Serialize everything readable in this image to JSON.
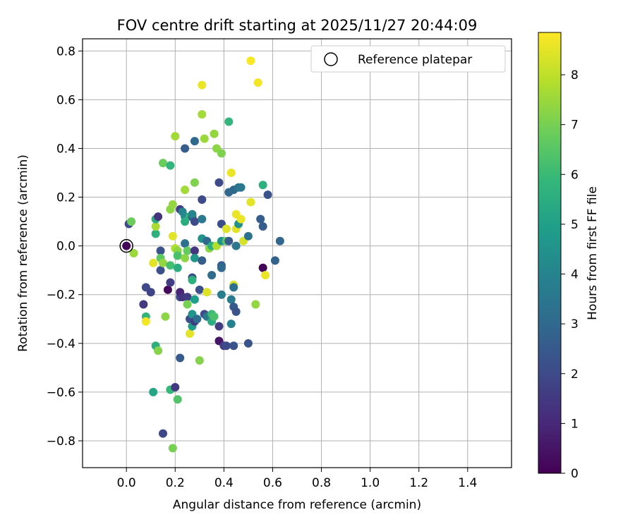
{
  "chart_data": {
    "type": "scatter",
    "title": "FOV centre drift starting at 2025/11/27 20:44:09",
    "xlabel": "Angular distance from reference (arcmin)",
    "ylabel": "Rotation from reference (arcmin)",
    "xlim": [
      -0.18,
      1.58
    ],
    "ylim": [
      -0.91,
      0.85
    ],
    "grid": true,
    "xticks": [
      0.0,
      0.2,
      0.4,
      0.6,
      0.8,
      1.0,
      1.2,
      1.4
    ],
    "xtick_labels": [
      "0.0",
      "0.2",
      "0.4",
      "0.6",
      "0.8",
      "1.0",
      "1.2",
      "1.4"
    ],
    "yticks": [
      0.8,
      0.6,
      0.4,
      0.2,
      0.0,
      -0.2,
      -0.4,
      -0.6,
      -0.8
    ],
    "ytick_labels": [
      "0.8",
      "0.6",
      "0.4",
      "0.2",
      "0.0",
      "−0.2",
      "−0.4",
      "−0.6",
      "−0.8"
    ],
    "legend": {
      "placement": "top-right",
      "label": "Reference platepar"
    },
    "reference_point": {
      "x": 0.0,
      "y": 0.0
    },
    "colorbar": {
      "label": "Hours from first FF file",
      "range": [
        0,
        8.85
      ],
      "ticks": [
        0,
        1,
        2,
        3,
        4,
        5,
        6,
        7,
        8
      ],
      "tick_labels": [
        "0",
        "1",
        "2",
        "3",
        "4",
        "5",
        "6",
        "7",
        "8"
      ],
      "colormap": "viridis",
      "colormap_stops": [
        "#440154",
        "#482878",
        "#3e4989",
        "#31688e",
        "#26828e",
        "#1f9e89",
        "#35b779",
        "#6ece58",
        "#b5de2b",
        "#fde725"
      ]
    },
    "points": [
      {
        "x": 0.0,
        "y": 0.0,
        "t": 0.1
      },
      {
        "x": 0.01,
        "y": 0.09,
        "t": 2.0
      },
      {
        "x": 0.02,
        "y": 0.1,
        "t": 6.8
      },
      {
        "x": 0.03,
        "y": -0.03,
        "t": 7.5
      },
      {
        "x": 0.07,
        "y": -0.24,
        "t": 1.5
      },
      {
        "x": 0.08,
        "y": -0.29,
        "t": 5.8
      },
      {
        "x": 0.08,
        "y": -0.31,
        "t": 8.7
      },
      {
        "x": 0.08,
        "y": -0.17,
        "t": 2.0
      },
      {
        "x": 0.1,
        "y": -0.19,
        "t": 1.8
      },
      {
        "x": 0.11,
        "y": -0.07,
        "t": 8.5
      },
      {
        "x": 0.11,
        "y": -0.6,
        "t": 5.2
      },
      {
        "x": 0.12,
        "y": 0.05,
        "t": 5.6
      },
      {
        "x": 0.12,
        "y": 0.08,
        "t": 7.7
      },
      {
        "x": 0.12,
        "y": 0.11,
        "t": 5.4
      },
      {
        "x": 0.13,
        "y": 0.12,
        "t": 1.3
      },
      {
        "x": 0.12,
        "y": -0.41,
        "t": 5.6
      },
      {
        "x": 0.13,
        "y": -0.43,
        "t": 7.2
      },
      {
        "x": 0.14,
        "y": -0.02,
        "t": 2.3
      },
      {
        "x": 0.14,
        "y": -0.05,
        "t": 6.6
      },
      {
        "x": 0.14,
        "y": -0.1,
        "t": 2.2
      },
      {
        "x": 0.15,
        "y": -0.07,
        "t": 7.4
      },
      {
        "x": 0.15,
        "y": -0.77,
        "t": 1.9
      },
      {
        "x": 0.15,
        "y": 0.34,
        "t": 6.8
      },
      {
        "x": 0.16,
        "y": -0.29,
        "t": 7.3
      },
      {
        "x": 0.17,
        "y": -0.18,
        "t": 0.2
      },
      {
        "x": 0.18,
        "y": 0.33,
        "t": 5.8
      },
      {
        "x": 0.18,
        "y": 0.15,
        "t": 7.3
      },
      {
        "x": 0.19,
        "y": 0.17,
        "t": 7.4
      },
      {
        "x": 0.18,
        "y": -0.15,
        "t": 1.6
      },
      {
        "x": 0.18,
        "y": -0.08,
        "t": 6.2
      },
      {
        "x": 0.18,
        "y": -0.59,
        "t": 5.9
      },
      {
        "x": 0.19,
        "y": -0.83,
        "t": 7.0
      },
      {
        "x": 0.19,
        "y": 0.04,
        "t": 8.5
      },
      {
        "x": 0.2,
        "y": 0.45,
        "t": 7.6
      },
      {
        "x": 0.2,
        "y": -0.01,
        "t": 7.8
      },
      {
        "x": 0.2,
        "y": -0.58,
        "t": 1.5
      },
      {
        "x": 0.21,
        "y": -0.63,
        "t": 6.4
      },
      {
        "x": 0.21,
        "y": -0.02,
        "t": 7.3
      },
      {
        "x": 0.21,
        "y": -0.04,
        "t": 6.3
      },
      {
        "x": 0.21,
        "y": -0.09,
        "t": 5.5
      },
      {
        "x": 0.22,
        "y": -0.21,
        "t": 2.0
      },
      {
        "x": 0.22,
        "y": -0.19,
        "t": 0.9
      },
      {
        "x": 0.22,
        "y": 0.15,
        "t": 1.5
      },
      {
        "x": 0.22,
        "y": -0.46,
        "t": 2.5
      },
      {
        "x": 0.23,
        "y": 0.14,
        "t": 4.0
      },
      {
        "x": 0.23,
        "y": -0.21,
        "t": 1.3
      },
      {
        "x": 0.24,
        "y": 0.4,
        "t": 2.6
      },
      {
        "x": 0.24,
        "y": 0.23,
        "t": 7.6
      },
      {
        "x": 0.24,
        "y": 0.12,
        "t": 4.2
      },
      {
        "x": 0.24,
        "y": 0.1,
        "t": 5.5
      },
      {
        "x": 0.24,
        "y": -0.05,
        "t": 7.3
      },
      {
        "x": 0.24,
        "y": 0.01,
        "t": 3.3
      },
      {
        "x": 0.25,
        "y": -0.21,
        "t": 1.6
      },
      {
        "x": 0.25,
        "y": -0.24,
        "t": 7.0
      },
      {
        "x": 0.25,
        "y": -0.02,
        "t": 6.7
      },
      {
        "x": 0.26,
        "y": 0.12,
        "t": 5.7
      },
      {
        "x": 0.26,
        "y": -0.3,
        "t": 2.2
      },
      {
        "x": 0.26,
        "y": -0.36,
        "t": 8.5
      },
      {
        "x": 0.27,
        "y": 0.12,
        "t": 2.5
      },
      {
        "x": 0.27,
        "y": 0.13,
        "t": 4.0
      },
      {
        "x": 0.27,
        "y": -0.13,
        "t": 2.2
      },
      {
        "x": 0.27,
        "y": -0.14,
        "t": 5.6
      },
      {
        "x": 0.27,
        "y": -0.28,
        "t": 4.6
      },
      {
        "x": 0.27,
        "y": -0.33,
        "t": 4.9
      },
      {
        "x": 0.28,
        "y": 0.43,
        "t": 3.0
      },
      {
        "x": 0.28,
        "y": 0.26,
        "t": 7.1
      },
      {
        "x": 0.28,
        "y": 0.1,
        "t": 2.0
      },
      {
        "x": 0.28,
        "y": -0.02,
        "t": 1.4
      },
      {
        "x": 0.28,
        "y": -0.05,
        "t": 4.7
      },
      {
        "x": 0.28,
        "y": -0.22,
        "t": 4.9
      },
      {
        "x": 0.28,
        "y": -0.31,
        "t": 1.6
      },
      {
        "x": 0.29,
        "y": -0.3,
        "t": 3.1
      },
      {
        "x": 0.3,
        "y": -0.47,
        "t": 7.2
      },
      {
        "x": 0.3,
        "y": -0.18,
        "t": 2.2
      },
      {
        "x": 0.31,
        "y": 0.66,
        "t": 8.6
      },
      {
        "x": 0.31,
        "y": 0.54,
        "t": 7.6
      },
      {
        "x": 0.31,
        "y": 0.19,
        "t": 2.0
      },
      {
        "x": 0.31,
        "y": 0.11,
        "t": 3.6
      },
      {
        "x": 0.31,
        "y": 0.03,
        "t": 4.5
      },
      {
        "x": 0.31,
        "y": -0.06,
        "t": 2.6
      },
      {
        "x": 0.32,
        "y": 0.44,
        "t": 7.5
      },
      {
        "x": 0.32,
        "y": -0.28,
        "t": 2.0
      },
      {
        "x": 0.33,
        "y": 0.02,
        "t": 3.0
      },
      {
        "x": 0.33,
        "y": -0.29,
        "t": 3.5
      },
      {
        "x": 0.33,
        "y": -0.19,
        "t": 8.4
      },
      {
        "x": 0.34,
        "y": -0.01,
        "t": 7.3
      },
      {
        "x": 0.35,
        "y": -0.12,
        "t": 3.1
      },
      {
        "x": 0.35,
        "y": 0.0,
        "t": 5.6
      },
      {
        "x": 0.35,
        "y": -0.28,
        "t": 6.0
      },
      {
        "x": 0.35,
        "y": -0.31,
        "t": 5.5
      },
      {
        "x": 0.36,
        "y": 0.46,
        "t": 7.4
      },
      {
        "x": 0.36,
        "y": -0.29,
        "t": 6.3
      },
      {
        "x": 0.37,
        "y": 0.0,
        "t": 7.8
      },
      {
        "x": 0.37,
        "y": 0.4,
        "t": 7.3
      },
      {
        "x": 0.38,
        "y": 0.26,
        "t": 2.0
      },
      {
        "x": 0.38,
        "y": -0.39,
        "t": 0.5
      },
      {
        "x": 0.38,
        "y": -0.33,
        "t": 1.6
      },
      {
        "x": 0.39,
        "y": 0.38,
        "t": 7.1
      },
      {
        "x": 0.39,
        "y": 0.09,
        "t": 2.1
      },
      {
        "x": 0.39,
        "y": -0.08,
        "t": 2.6
      },
      {
        "x": 0.39,
        "y": -0.09,
        "t": 3.0
      },
      {
        "x": 0.39,
        "y": -0.2,
        "t": 3.7
      },
      {
        "x": 0.39,
        "y": 0.02,
        "t": 4.5
      },
      {
        "x": 0.4,
        "y": -0.41,
        "t": 1.7
      },
      {
        "x": 0.41,
        "y": -0.41,
        "t": 2.0
      },
      {
        "x": 0.41,
        "y": 0.07,
        "t": 8.4
      },
      {
        "x": 0.41,
        "y": 0.02,
        "t": 6.6
      },
      {
        "x": 0.42,
        "y": 0.22,
        "t": 3.0
      },
      {
        "x": 0.42,
        "y": 0.51,
        "t": 5.8
      },
      {
        "x": 0.42,
        "y": 0.02,
        "t": 2.5
      },
      {
        "x": 0.43,
        "y": 0.3,
        "t": 8.6
      },
      {
        "x": 0.43,
        "y": -0.22,
        "t": 3.6
      },
      {
        "x": 0.43,
        "y": -0.32,
        "t": 3.9
      },
      {
        "x": 0.44,
        "y": 0.23,
        "t": 3.0
      },
      {
        "x": 0.44,
        "y": -0.16,
        "t": 8.3
      },
      {
        "x": 0.44,
        "y": -0.17,
        "t": 3.2
      },
      {
        "x": 0.44,
        "y": -0.25,
        "t": 2.5
      },
      {
        "x": 0.44,
        "y": -0.41,
        "t": 2.3
      },
      {
        "x": 0.45,
        "y": 0.07,
        "t": 8.5
      },
      {
        "x": 0.45,
        "y": 0.13,
        "t": 8.6
      },
      {
        "x": 0.45,
        "y": 0.0,
        "t": 3.5
      },
      {
        "x": 0.45,
        "y": -0.27,
        "t": 2.3
      },
      {
        "x": 0.46,
        "y": 0.24,
        "t": 3.4
      },
      {
        "x": 0.46,
        "y": 0.09,
        "t": 4.5
      },
      {
        "x": 0.47,
        "y": 0.24,
        "t": 3.5
      },
      {
        "x": 0.47,
        "y": 0.11,
        "t": 8.6
      },
      {
        "x": 0.48,
        "y": 0.02,
        "t": 8.3
      },
      {
        "x": 0.5,
        "y": 0.04,
        "t": 3.4
      },
      {
        "x": 0.5,
        "y": -0.4,
        "t": 2.3
      },
      {
        "x": 0.51,
        "y": 0.18,
        "t": 8.5
      },
      {
        "x": 0.51,
        "y": 0.76,
        "t": 8.8
      },
      {
        "x": 0.53,
        "y": -0.24,
        "t": 7.4
      },
      {
        "x": 0.54,
        "y": 0.67,
        "t": 8.7
      },
      {
        "x": 0.55,
        "y": 0.11,
        "t": 2.6
      },
      {
        "x": 0.56,
        "y": -0.09,
        "t": 0.1
      },
      {
        "x": 0.56,
        "y": 0.25,
        "t": 5.6
      },
      {
        "x": 0.56,
        "y": 0.08,
        "t": 2.6
      },
      {
        "x": 0.57,
        "y": -0.12,
        "t": 8.6
      },
      {
        "x": 0.58,
        "y": 0.21,
        "t": 2.3
      },
      {
        "x": 0.61,
        "y": -0.06,
        "t": 2.8
      },
      {
        "x": 0.63,
        "y": 0.02,
        "t": 2.9
      }
    ]
  }
}
